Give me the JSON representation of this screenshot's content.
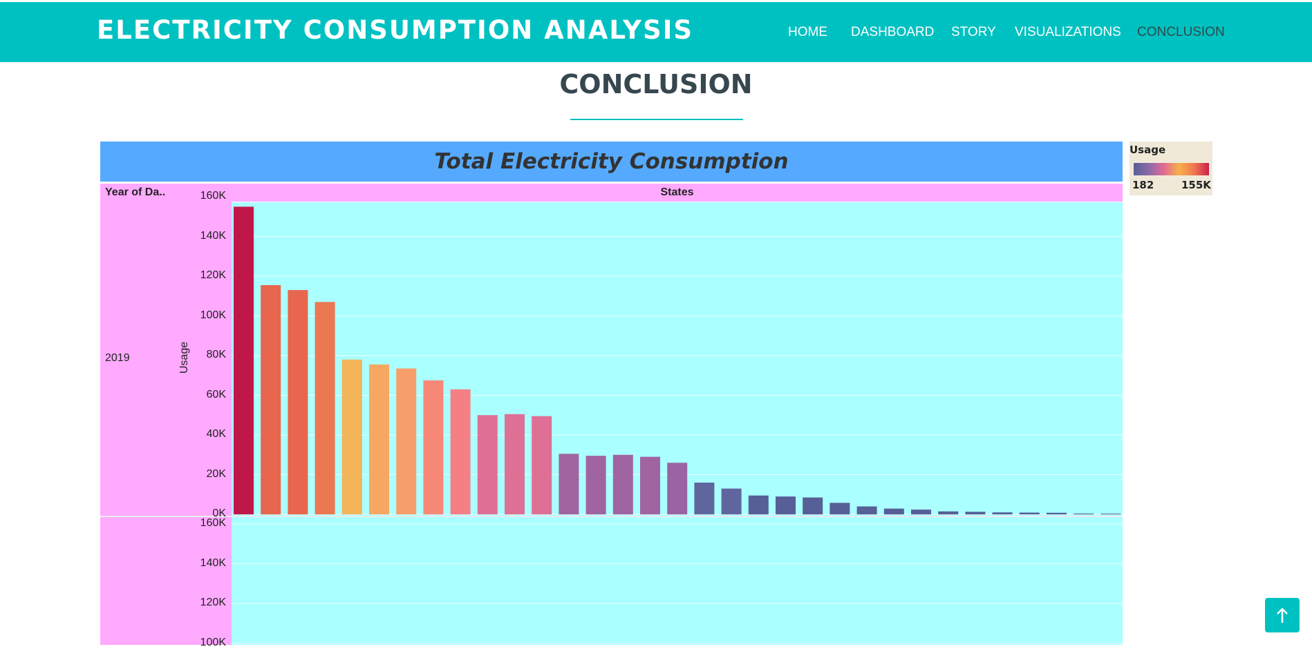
{
  "header": {
    "brand": "ELECTRICITY CONSUMPTION ANALYSIS",
    "nav": [
      "HOME",
      "DASHBOARD",
      "STORY",
      "VISUALIZATIONS",
      "CONCLUSION"
    ],
    "active": "CONCLUSION"
  },
  "page": {
    "title": "CONCLUSION"
  },
  "colors": {
    "accent": "#00c1c1",
    "chart_header_bg": "#55aaff",
    "pane_bg": "#aaffff",
    "header_cell_bg": "#ffaaff"
  },
  "icons": {
    "scroll_top": "arrow-up-icon"
  },
  "chart_data": {
    "type": "bar",
    "title": "Total Electricity Consumption",
    "row_header": "Year of Da..",
    "column_header": "States",
    "ylabel": "Usage",
    "row_values": [
      "2019"
    ],
    "ylim": [
      0,
      160000
    ],
    "y_ticks": [
      "160K",
      "140K",
      "120K",
      "100K",
      "80K",
      "60K",
      "40K",
      "20K",
      "0K"
    ],
    "lower_pane_ticks": [
      "160K",
      "140K",
      "120K",
      "100K"
    ],
    "values": [
      155000,
      115500,
      113000,
      107000,
      78000,
      75500,
      73500,
      67500,
      63000,
      50000,
      50500,
      49500,
      30500,
      29500,
      30000,
      29000,
      26000,
      16000,
      13000,
      9500,
      9000,
      8500,
      5800,
      4000,
      2900,
      2400,
      1500,
      1300,
      1000,
      900,
      800,
      400,
      182
    ],
    "bar_colors": [
      "#c0174a",
      "#e8664e",
      "#e8664e",
      "#eb7850",
      "#f4b45a",
      "#f6a862",
      "#f79f6c",
      "#f78878",
      "#f48086",
      "#df7095",
      "#df7095",
      "#df7095",
      "#a064a0",
      "#a064a0",
      "#a064a0",
      "#a064a0",
      "#9a63a2",
      "#5f669e",
      "#5f669e",
      "#565f96",
      "#565f96",
      "#565f96",
      "#565f96",
      "#565f96",
      "#565f96",
      "#565f96",
      "#565f96",
      "#565f96",
      "#565f96",
      "#565f96",
      "#565f96",
      "#565f96",
      "#565f96"
    ],
    "legend": {
      "title": "Usage",
      "min": "182",
      "max": "155K",
      "placement": "top-right"
    },
    "grid": true
  }
}
